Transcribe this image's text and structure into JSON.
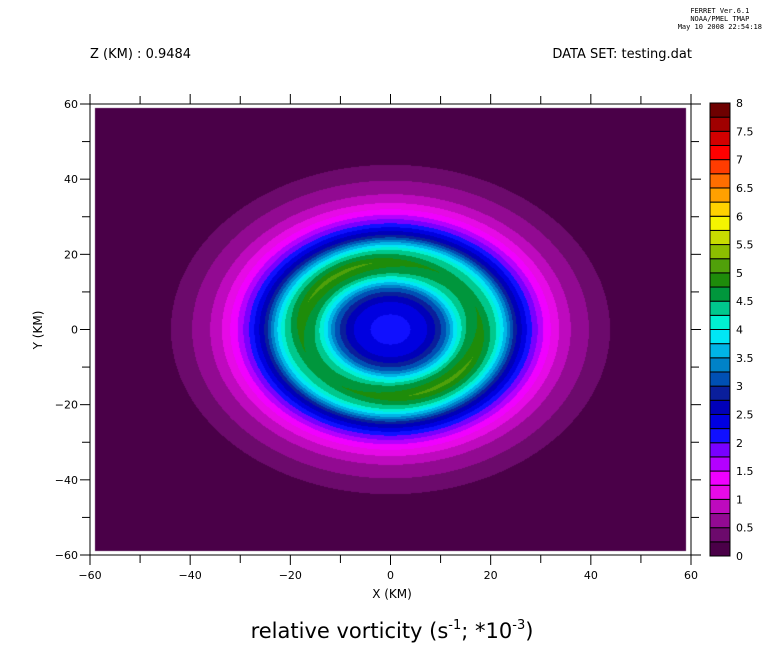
{
  "stamp": {
    "line1": "FERRET  Ver.6.1",
    "line2": "NOAA/PMEL TMAP",
    "line3": "May 10 2008 22:54:18"
  },
  "header": {
    "left": "Z (KM) : 0.9484",
    "right": "DATA SET: testing.dat"
  },
  "chart_data": {
    "type": "heatmap",
    "subtype": "filled-contour",
    "title_main": "relative vorticity (s",
    "title_exp1": "-1",
    "title_mid": "; *10",
    "title_exp2": "-3",
    "title_end": ")",
    "xlabel": "X (KM)",
    "ylabel": "Y (KM)",
    "xlim": [
      -60,
      60
    ],
    "ylim": [
      -60,
      60
    ],
    "xticks": [
      "-60",
      "-40",
      "-20",
      "0",
      "20",
      "40",
      "60"
    ],
    "yticks": [
      "-60",
      "-40",
      "-20",
      "0",
      "20",
      "40",
      "60"
    ],
    "data_extent": [
      -59,
      59
    ],
    "levels_min": 0,
    "levels_max": 8,
    "level_step": 0.25,
    "colorbar_labels": [
      "0",
      "0.5",
      "1",
      "1.5",
      "2",
      "2.5",
      "3",
      "3.5",
      "4",
      "4.5",
      "5",
      "5.5",
      "6",
      "6.5",
      "7",
      "7.5",
      "8"
    ],
    "colors": [
      "#4a0048",
      "#6c0a6c",
      "#920a92",
      "#be0abe",
      "#e60ae6",
      "#f000ff",
      "#b400ff",
      "#7800ff",
      "#1010ff",
      "#0000e0",
      "#0000b8",
      "#0a1e9b",
      "#0050b4",
      "#0082c8",
      "#00b4e6",
      "#00e6f5",
      "#00f0d2",
      "#00c88c",
      "#00963c",
      "#1e8c0a",
      "#50a00a",
      "#8cbe00",
      "#c8dc00",
      "#f5f500",
      "#ffd200",
      "#ffa000",
      "#ff6e00",
      "#ff3c00",
      "#ff0000",
      "#d20000",
      "#a00000",
      "#6e0000"
    ],
    "center": [
      0,
      0
    ],
    "radial_profile_km": [
      0,
      4,
      8,
      11,
      13,
      15,
      18,
      21,
      23,
      25,
      28,
      31,
      34,
      37,
      41,
      44,
      50
    ],
    "radial_profile_value": [
      2.1,
      2.25,
      2.55,
      3.2,
      3.9,
      4.5,
      4.9,
      4.3,
      3.6,
      2.8,
      2.05,
      1.4,
      0.95,
      0.65,
      0.42,
      0.24,
      0.1
    ]
  }
}
